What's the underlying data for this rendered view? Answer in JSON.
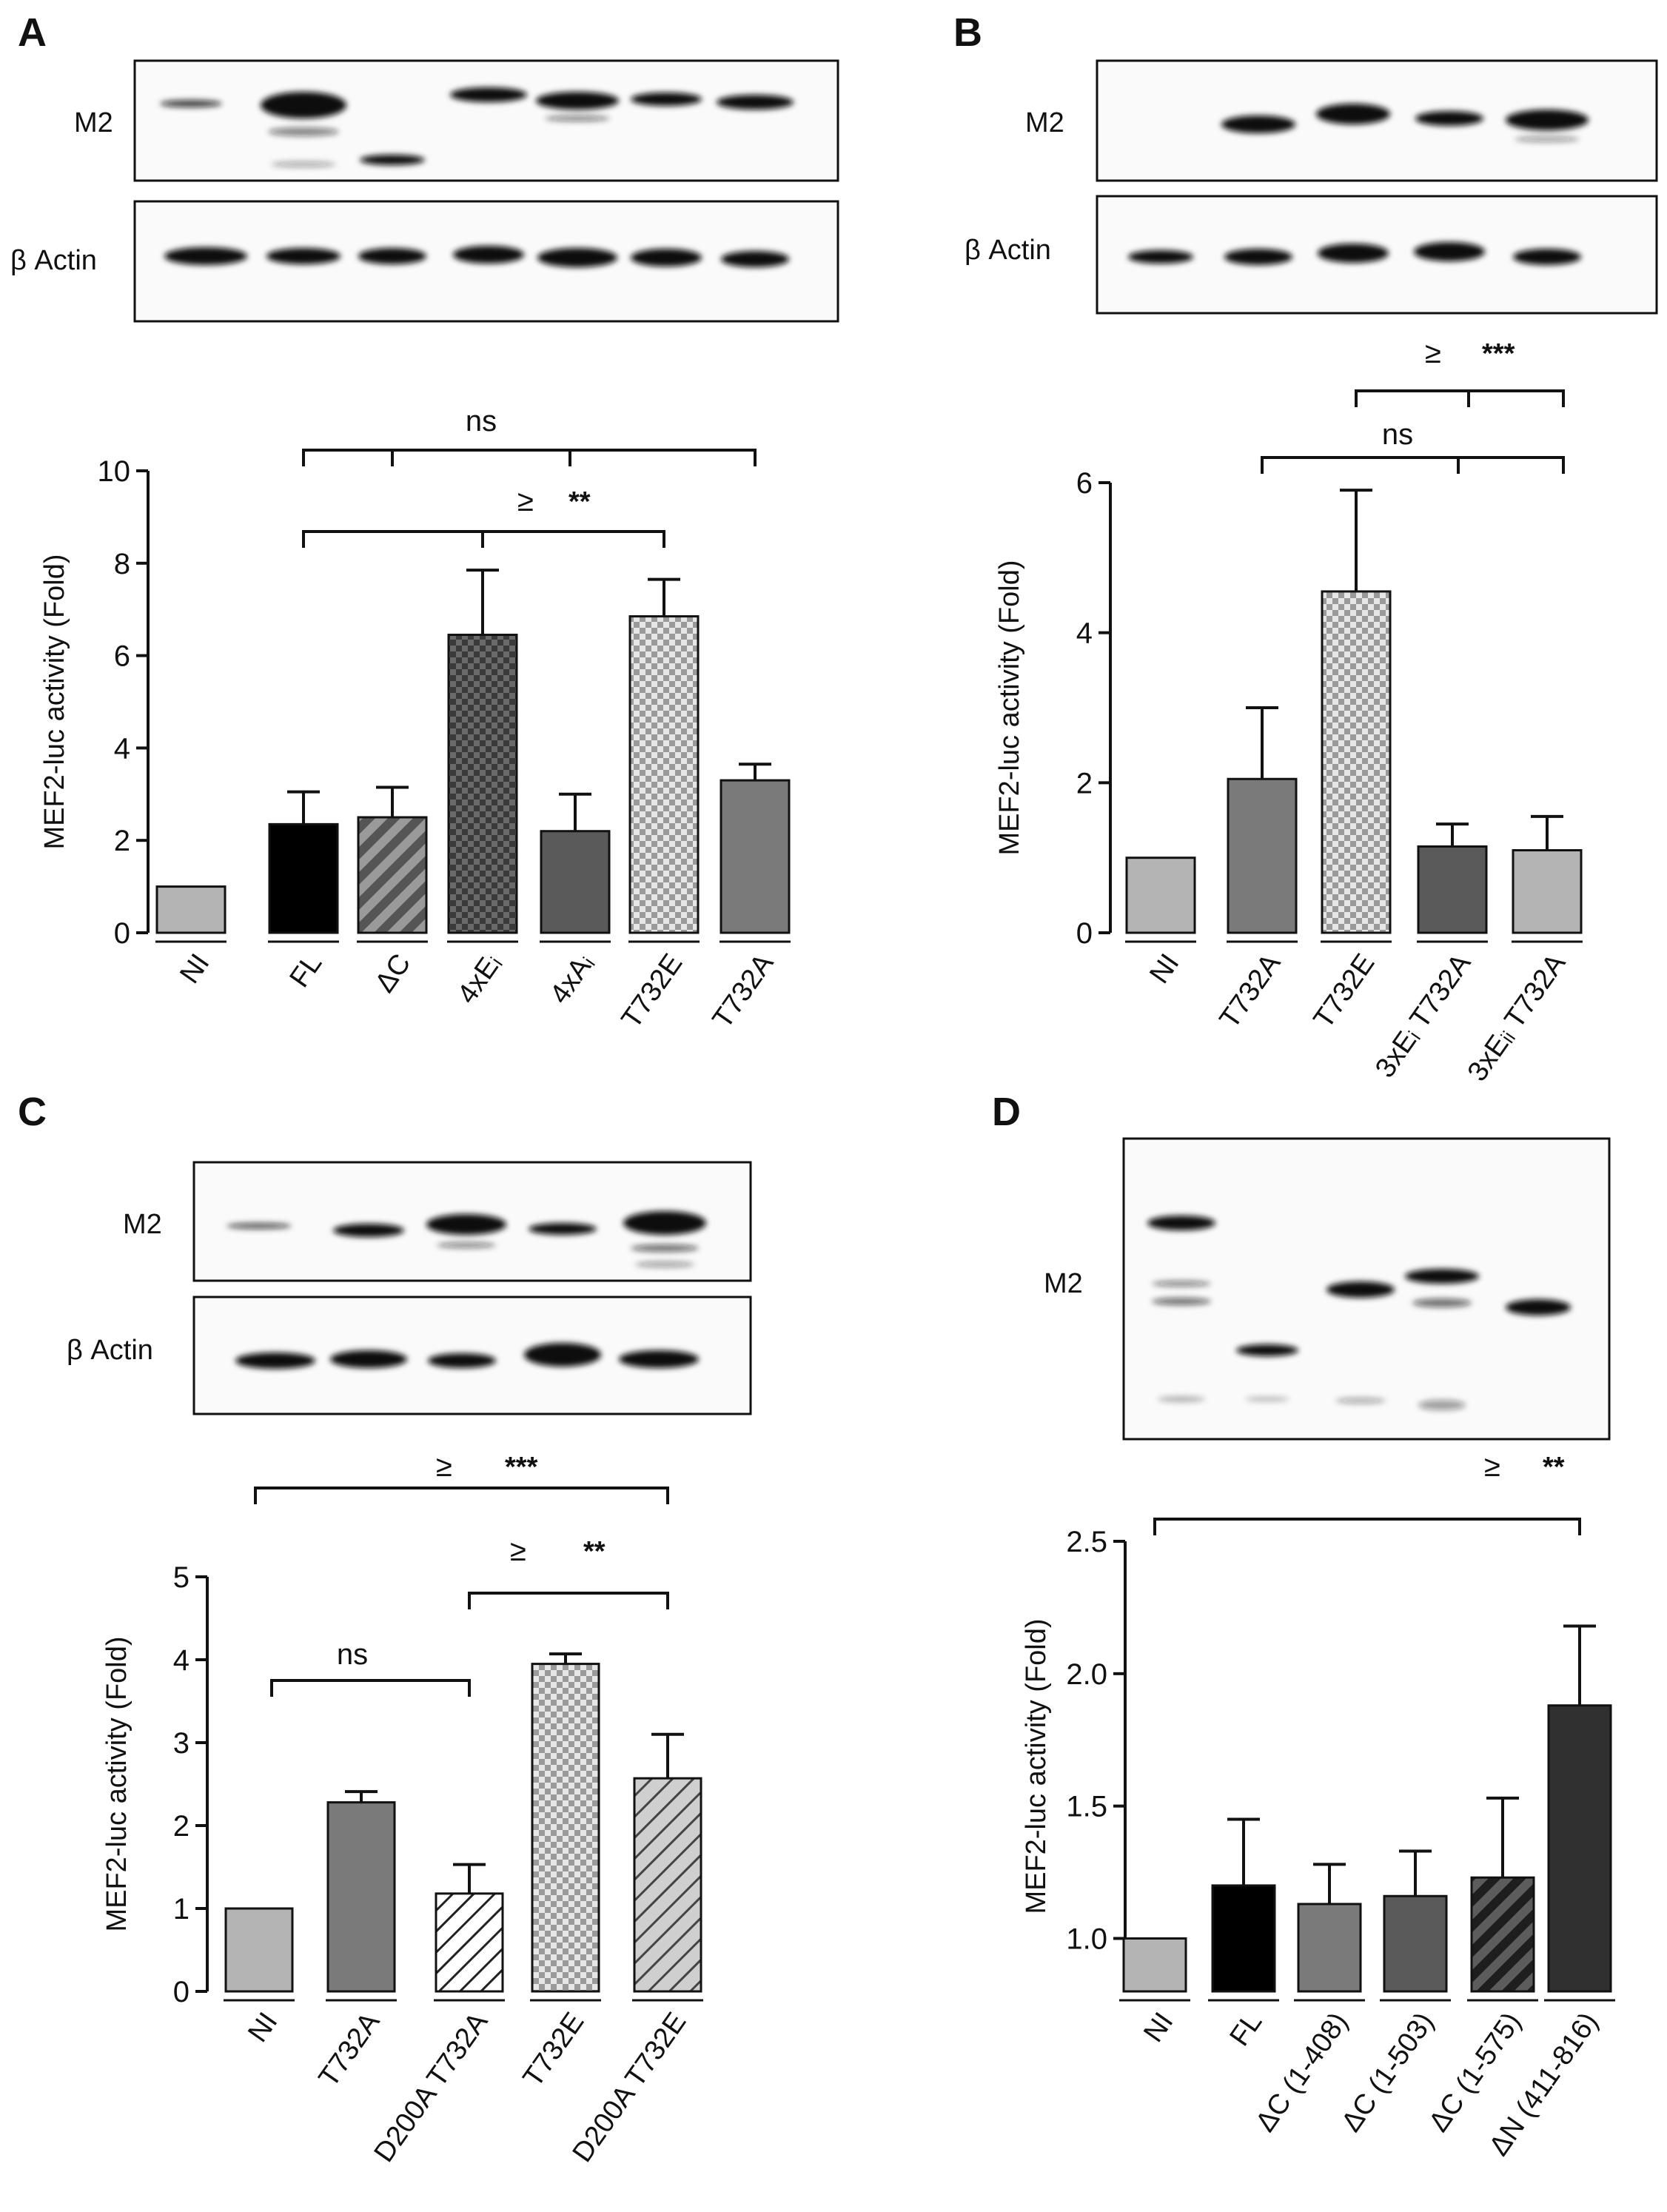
{
  "colors": {
    "bar_light_gray": "#b4b4b4",
    "bar_black": "#000000",
    "bar_mid_gray": "#7a7a7a",
    "bar_dark_gray": "#5a5a5a",
    "bar_darker": "#303030",
    "axis": "#111111",
    "blot_band": "#111111"
  },
  "chart_data": [
    {
      "panel": "A",
      "type": "bar",
      "blot_labels": [
        "M2",
        "β Actin"
      ],
      "ylabel": "MEF2-luc activity (Fold)",
      "ylim": [
        0,
        10
      ],
      "yticks": [
        "0",
        "2",
        "4",
        "6",
        "8",
        "10"
      ],
      "categories": [
        "NI",
        "FL",
        "ΔC",
        "4xEᵢ",
        "4xAᵢ",
        "T732E",
        "T732A"
      ],
      "values": [
        1.0,
        2.35,
        2.5,
        6.45,
        2.2,
        6.85,
        3.3
      ],
      "errors": [
        0,
        0.7,
        0.65,
        1.4,
        0.8,
        0.8,
        0.35
      ],
      "fills": [
        "light-gray",
        "black",
        "hatch-dark",
        "check-dark",
        "dark-gray",
        "check-light",
        "mid-gray"
      ],
      "annotations": [
        {
          "text": "ns",
          "stars": ""
        },
        {
          "text": "≥",
          "stars": "**"
        }
      ]
    },
    {
      "panel": "B",
      "type": "bar",
      "blot_labels": [
        "M2",
        "β Actin"
      ],
      "ylabel": "MEF2-luc activity (Fold)",
      "ylim": [
        0,
        6
      ],
      "yticks": [
        "0",
        "2",
        "4",
        "6"
      ],
      "categories": [
        "NI",
        "T732A",
        "T732E",
        "3xEᵢ T732A",
        "3xEᵢᵢ T732A"
      ],
      "values": [
        1.0,
        2.05,
        4.55,
        1.15,
        1.1
      ],
      "errors": [
        0,
        0.95,
        1.35,
        0.3,
        0.45
      ],
      "fills": [
        "light-gray",
        "mid-gray",
        "check-light",
        "dark-gray",
        "light-gray"
      ],
      "annotations": [
        {
          "text": "≥",
          "stars": "***"
        },
        {
          "text": "ns",
          "stars": ""
        }
      ]
    },
    {
      "panel": "C",
      "type": "bar",
      "blot_labels": [
        "M2",
        "β Actin"
      ],
      "ylabel": "MEF2-luc activity (Fold)",
      "ylim": [
        0,
        5
      ],
      "yticks": [
        "0",
        "1",
        "2",
        "3",
        "4",
        "5"
      ],
      "categories": [
        "NI",
        "T732A",
        "D200A T732A",
        "T732E",
        "D200A T732E"
      ],
      "values": [
        1.0,
        2.28,
        1.18,
        3.95,
        2.57
      ],
      "errors": [
        0,
        0.13,
        0.35,
        0.12,
        0.53
      ],
      "fills": [
        "light-gray",
        "mid-gray",
        "hatch-white",
        "check-light",
        "hatch-light"
      ],
      "annotations": [
        {
          "text": "≥",
          "stars": "***"
        },
        {
          "text": "≥",
          "stars": "**"
        },
        {
          "text": "ns",
          "stars": ""
        }
      ]
    },
    {
      "panel": "D",
      "type": "bar",
      "blot_labels": [
        "M2"
      ],
      "ylabel": "MEF2-luc activity (Fold)",
      "ylim": [
        0.8,
        2.5
      ],
      "yticks": [
        "1.0",
        "1.5",
        "2.0",
        "2.5"
      ],
      "categories": [
        "NI",
        "FL",
        "ΔC (1-408)",
        "ΔC (1-503)",
        "ΔC (1-575)",
        "ΔN (411-816)"
      ],
      "values": [
        1.0,
        1.2,
        1.13,
        1.16,
        1.23,
        1.88
      ],
      "errors": [
        0,
        0.25,
        0.15,
        0.17,
        0.3,
        0.3
      ],
      "fills": [
        "light-gray",
        "black",
        "mid-gray",
        "dark-gray",
        "hatch-darker",
        "darker"
      ],
      "annotations": [
        {
          "text": "≥",
          "stars": "**"
        }
      ]
    }
  ],
  "panels": {
    "A": "A",
    "B": "B",
    "C": "C",
    "D": "D"
  }
}
